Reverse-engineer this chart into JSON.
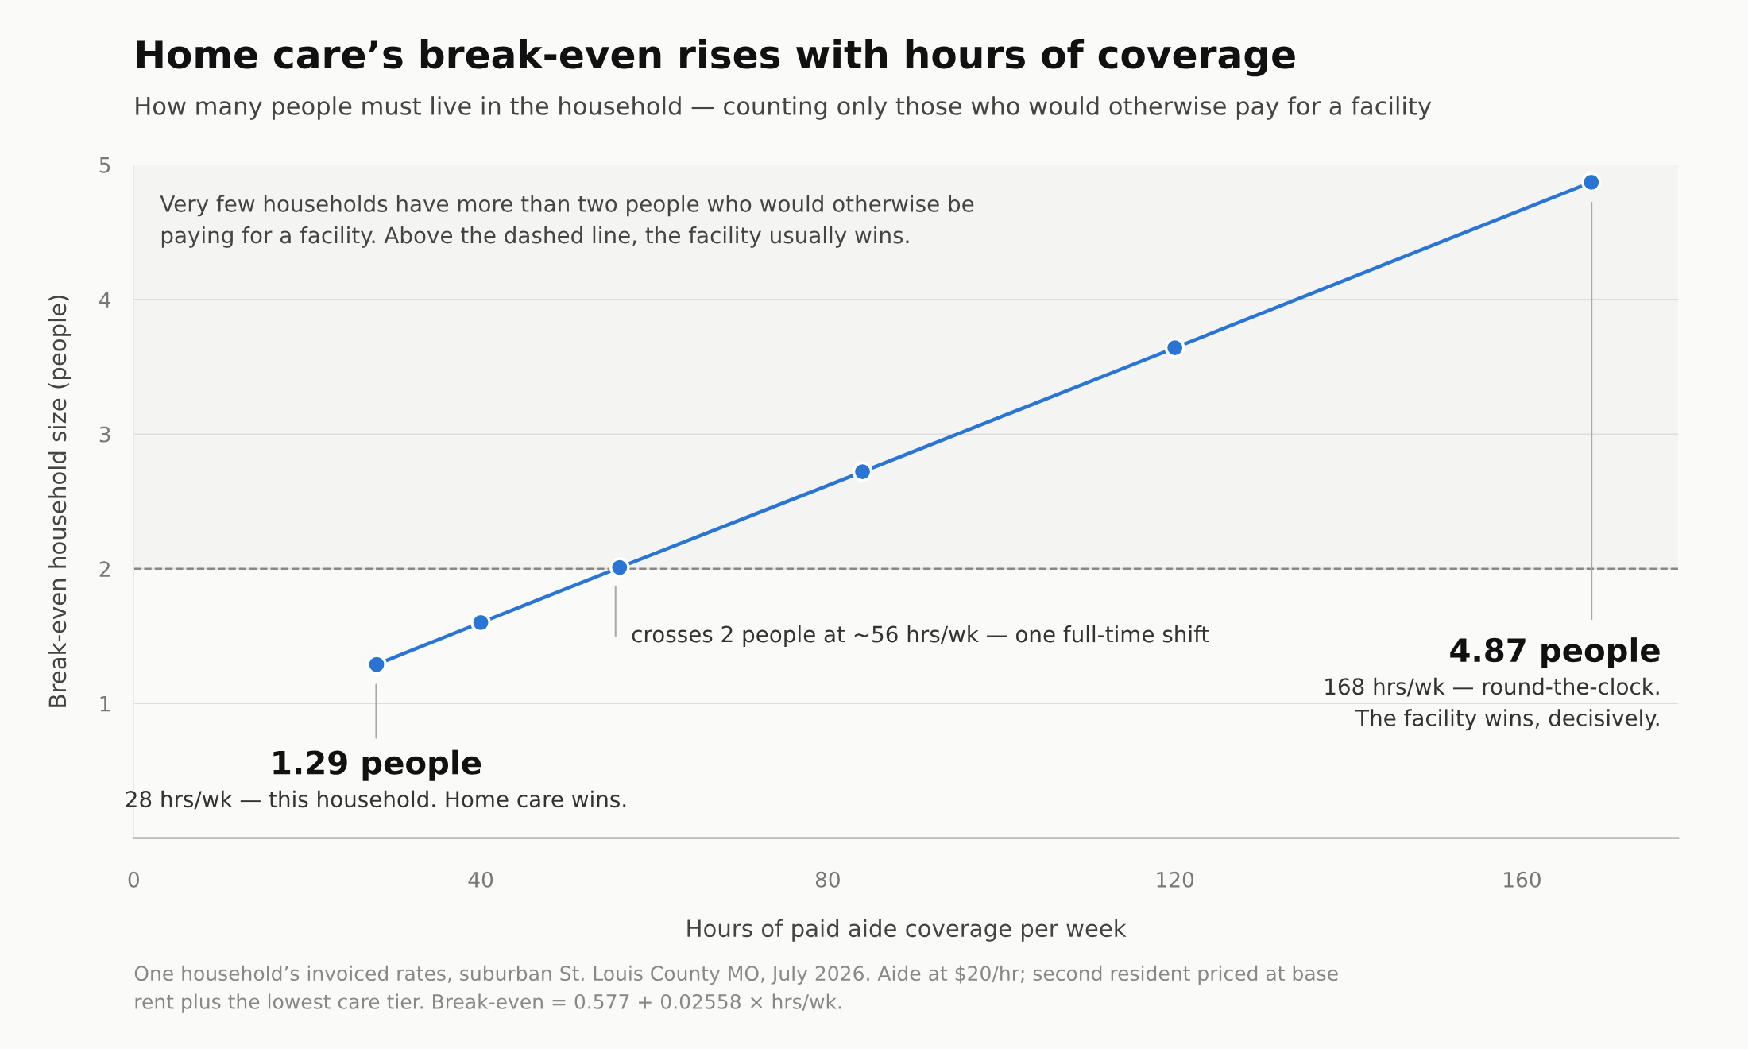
{
  "chart_data": {
    "type": "line",
    "title": "Home care’s break-even rises with hours of coverage",
    "subtitle": "How many people must live in the household — counting only those who would otherwise pay for a facility",
    "xlabel": "Hours of paid aide coverage per week",
    "ylabel": "Break-even household size (people)",
    "x": [
      28,
      40,
      56,
      84,
      120,
      168
    ],
    "series": [
      {
        "color": "#2a74d4",
        "values": [
          1.29,
          1.6,
          2.01,
          2.72,
          3.64,
          4.87
        ]
      }
    ],
    "xlim": [
      0,
      178
    ],
    "xticks": [
      0,
      40,
      80,
      120,
      160
    ],
    "ylim": [
      0,
      5
    ],
    "yticks": [
      {
        "value": 0,
        "label": null
      },
      1,
      2,
      3,
      4,
      5
    ],
    "grid": "y",
    "marker": "circle",
    "line_style": "solid",
    "ref_lines": [
      {
        "axis": "y",
        "value": 2,
        "color": "#888888",
        "line_style": "dashed"
      }
    ],
    "bands": [
      {
        "axis": "y",
        "from": 2,
        "to": 5,
        "color": "#f4f4f3"
      }
    ],
    "annotations": [
      "Very few households have more than two people who would otherwise be\npaying for a facility. Above the dashed line, the facility usually wins.",
      "1.29 people",
      "28 hrs/wk — this household. Home care wins.",
      "crosses 2 people at ~56 hrs/wk — one full-time shift",
      "4.87 people",
      "168 hrs/wk — round-the-clock.\nThe facility wins, decisively.",
      "One household’s invoiced rates, suburban St. Louis County MO, July 2026. Aide at $20/hr; second resident priced at base\nrent plus the lowest care tier. Break-even = 0.577 + 0.02558 × hrs/wk."
    ]
  }
}
